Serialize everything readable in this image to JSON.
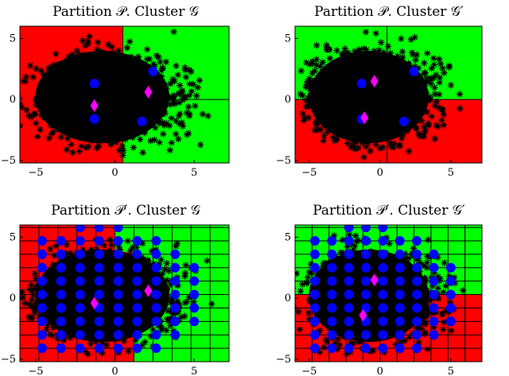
{
  "figure": {
    "colors": {
      "region_red": "#ff0000",
      "region_green": "#00ff00",
      "samples": "#000000",
      "centroid": "#0000ff",
      "cluster_center": "#ff00ff",
      "grid": "#000000"
    },
    "marker_legend": {
      "samples": "asterisk",
      "centroid": "circle",
      "cluster_center": "diamond"
    }
  },
  "chart_data": [
    {
      "type": "scatter",
      "title": "Partition 𝒫. Cluster 𝒢",
      "xlim": [
        -6,
        7.2
      ],
      "ylim": [
        -5.2,
        6
      ],
      "xticks": [
        -5,
        0,
        5
      ],
      "yticks": [
        -5,
        0,
        5
      ],
      "xlabel": "",
      "ylabel": "",
      "regions": [
        {
          "xmin": -6,
          "xmax": 0.5,
          "ymin": -5.2,
          "ymax": 6,
          "color": "red"
        },
        {
          "xmin": 0.5,
          "xmax": 7.2,
          "ymin": -5.2,
          "ymax": 6,
          "color": "green"
        },
        {
          "xmin": 0.5,
          "xmax": 7.2,
          "ymin": -5.2,
          "ymax": 0,
          "color": "green"
        }
      ],
      "centroids": [
        [
          -1.3,
          1.3
        ],
        [
          -1.3,
          -1.6
        ],
        [
          2.4,
          2.3
        ],
        [
          1.7,
          -1.8
        ]
      ],
      "cluster_centers": [
        [
          -1.3,
          -0.5
        ],
        [
          2.1,
          0.6
        ]
      ],
      "cloud": {
        "center": [
          -0.8,
          0.2
        ],
        "rx": 4.6,
        "ry": 4.2,
        "n_outliers": 260
      }
    },
    {
      "type": "scatter",
      "title": "Partition 𝒫. Cluster 𝒢′",
      "xlim": [
        -6,
        7.2
      ],
      "ylim": [
        -5.2,
        6
      ],
      "xticks": [
        -5,
        0,
        5
      ],
      "yticks": [
        -5,
        0,
        5
      ],
      "xlabel": "",
      "ylabel": "",
      "regions": [
        {
          "xmin": -6,
          "xmax": 0.5,
          "ymin": 0,
          "ymax": 6,
          "color": "green"
        },
        {
          "xmin": 0.5,
          "xmax": 7.2,
          "ymin": 0,
          "ymax": 6,
          "color": "green"
        },
        {
          "xmin": -6,
          "xmax": 0.5,
          "ymin": -5.2,
          "ymax": 0,
          "color": "red"
        },
        {
          "xmin": 0.5,
          "xmax": 7.2,
          "ymin": -5.2,
          "ymax": 0,
          "color": "red"
        }
      ],
      "centroids": [
        [
          -1.3,
          1.3
        ],
        [
          -1.3,
          -1.6
        ],
        [
          2.4,
          2.3
        ],
        [
          1.7,
          -1.8
        ]
      ],
      "cluster_centers": [
        [
          -0.4,
          1.5
        ],
        [
          -1.1,
          -1.5
        ]
      ],
      "cloud": {
        "center": [
          -0.8,
          0.2
        ],
        "rx": 4.6,
        "ry": 4.2,
        "n_outliers": 260
      }
    },
    {
      "type": "scatter",
      "title": "Partition 𝒫′. Cluster 𝒢",
      "xlim": [
        -6,
        7.2
      ],
      "ylim": [
        -5.2,
        6
      ],
      "xticks": [
        -5,
        0,
        5
      ],
      "yticks": [
        -5,
        0,
        5
      ],
      "xlabel": "",
      "ylabel": "",
      "grid_cell": [
        1.2,
        1.1
      ],
      "green_cells": [
        [
          1.2,
          2.4,
          -5.2,
          6
        ],
        [
          2.4,
          3.6,
          -5.2,
          6
        ],
        [
          3.6,
          4.8,
          -5.2,
          6
        ],
        [
          4.8,
          6.0,
          -5.2,
          6
        ],
        [
          6.0,
          7.2,
          -5.2,
          6
        ],
        [
          0.0,
          1.2,
          3.8,
          6
        ]
      ],
      "centroid_grid": {
        "xs": [
          -4.6,
          -3.4,
          -2.2,
          -1.0,
          0.2,
          1.4,
          2.6,
          3.8,
          5.0,
          6.2
        ],
        "ys": [
          -4.1,
          -3.0,
          -1.9,
          -0.8,
          0.3,
          1.4,
          2.5,
          3.6,
          4.7,
          5.8
        ]
      },
      "cluster_centers": [
        [
          -1.3,
          -0.4
        ],
        [
          2.1,
          0.6
        ]
      ],
      "cloud": {
        "center": [
          -0.8,
          0.2
        ],
        "rx": 4.6,
        "ry": 4.2,
        "n_outliers": 260
      }
    },
    {
      "type": "scatter",
      "title": "Partition 𝒫′. Cluster 𝒢′",
      "xlim": [
        -6,
        7.2
      ],
      "ylim": [
        -5.2,
        6
      ],
      "xticks": [
        -5,
        0,
        5
      ],
      "yticks": [
        -5,
        0,
        5
      ],
      "xlabel": "",
      "ylabel": "",
      "grid_cell": [
        1.2,
        1.1
      ],
      "red_cells": [
        [
          -6,
          0,
          -5.2,
          0.3
        ],
        [
          0,
          1.2,
          -5.2,
          -1.9
        ],
        [
          1.2,
          7.2,
          -5.2,
          0.3
        ],
        [
          0,
          1.2,
          -1.9,
          0.3
        ]
      ],
      "centroid_grid": {
        "xs": [
          -4.6,
          -3.4,
          -2.2,
          -1.0,
          0.2,
          1.4,
          2.6,
          3.8,
          5.0,
          6.2
        ],
        "ys": [
          -4.1,
          -3.0,
          -1.9,
          -0.8,
          0.3,
          1.4,
          2.5,
          3.6,
          4.7,
          5.8
        ]
      },
      "cluster_centers": [
        [
          -0.4,
          1.5
        ],
        [
          -1.2,
          -1.4
        ]
      ],
      "cloud": {
        "center": [
          -0.8,
          0.2
        ],
        "rx": 4.6,
        "ry": 4.2,
        "n_outliers": 260
      }
    }
  ]
}
